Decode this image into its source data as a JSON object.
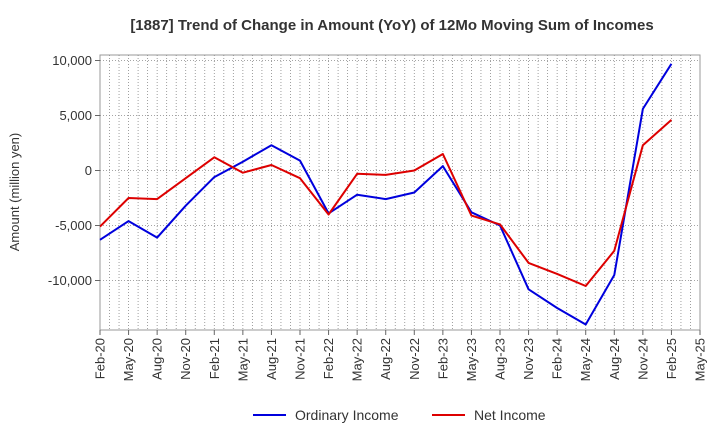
{
  "chart_data": {
    "type": "line",
    "title": "[1887]  Trend of Change in Amount (YoY) of 12Mo Moving Sum of Incomes",
    "xlabel": "",
    "ylabel": "Amount (million yen)",
    "ylim": [
      -14500,
      10500
    ],
    "yticks": [
      10000,
      5000,
      0,
      -5000,
      -10000
    ],
    "ytick_labels": [
      "10,000",
      "5,000",
      "0",
      "-5,000",
      "-10,000"
    ],
    "grid": true,
    "legend_position": "bottom-center",
    "categories": [
      "Feb-20",
      "May-20",
      "Aug-20",
      "Nov-20",
      "Feb-21",
      "May-21",
      "Aug-21",
      "Nov-21",
      "Feb-22",
      "May-22",
      "Aug-22",
      "Nov-22",
      "Feb-23",
      "May-23",
      "Aug-23",
      "Nov-23",
      "Feb-24",
      "May-24",
      "Aug-24",
      "Nov-24",
      "Feb-25",
      "May-25"
    ],
    "series": [
      {
        "name": "Ordinary Income",
        "color": "#0000dd",
        "values": [
          -6300,
          -4600,
          -6100,
          -3200,
          -600,
          800,
          2300,
          900,
          -3900,
          -2200,
          -2600,
          -2000,
          400,
          -3800,
          -5000,
          -10800,
          -12500,
          -14000,
          -9500,
          5600,
          9700,
          null
        ]
      },
      {
        "name": "Net Income",
        "color": "#dd0000",
        "values": [
          -5100,
          -2500,
          -2600,
          -700,
          1200,
          -200,
          500,
          -700,
          -4000,
          -300,
          -400,
          0,
          1500,
          -4100,
          -4900,
          -8400,
          -9400,
          -10500,
          -7300,
          2300,
          4600,
          null
        ]
      }
    ]
  }
}
